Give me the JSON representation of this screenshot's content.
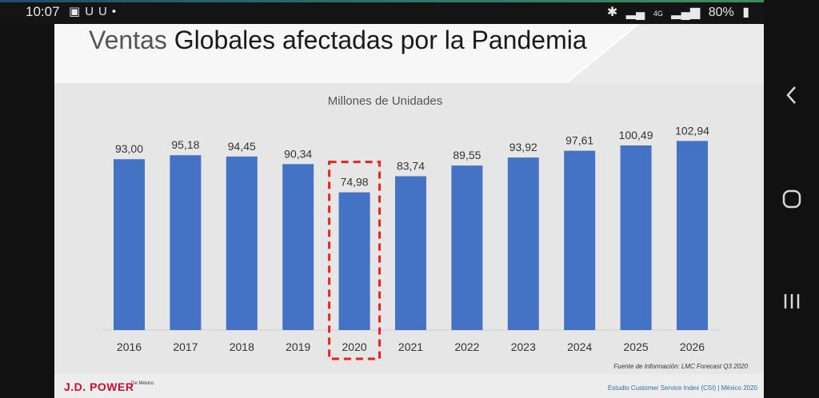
{
  "status_bar": {
    "time": "10:07",
    "battery": "80%",
    "network": "4G"
  },
  "slide": {
    "title_light": "Ventas",
    "title_main": "Globales afectadas por la Pandemia",
    "source": "Fuente de Información: LMC Forecast Q3 2020",
    "footer_brand": "J.D. POWER",
    "footer_brand_sub": "De México",
    "footer_right": "Estudio Customer Service Index (CSI) | México 2020"
  },
  "chart_data": {
    "type": "bar",
    "title": "Millones de Unidades",
    "categories": [
      "2016",
      "2017",
      "2018",
      "2019",
      "2020",
      "2021",
      "2022",
      "2023",
      "2024",
      "2025",
      "2026"
    ],
    "values": [
      93.0,
      95.18,
      94.45,
      90.34,
      74.98,
      83.74,
      89.55,
      93.92,
      97.61,
      100.49,
      102.94
    ],
    "value_labels": [
      "93,00",
      "95,18",
      "94,45",
      "90,34",
      "74,98",
      "83,74",
      "89,55",
      "93,92",
      "97,61",
      "100,49",
      "102,94"
    ],
    "highlight_category": "2020",
    "bar_color": "#4472c4",
    "highlight_color": "#e8231c",
    "ylim": [
      0,
      110
    ],
    "grid": false,
    "legend": "none"
  }
}
